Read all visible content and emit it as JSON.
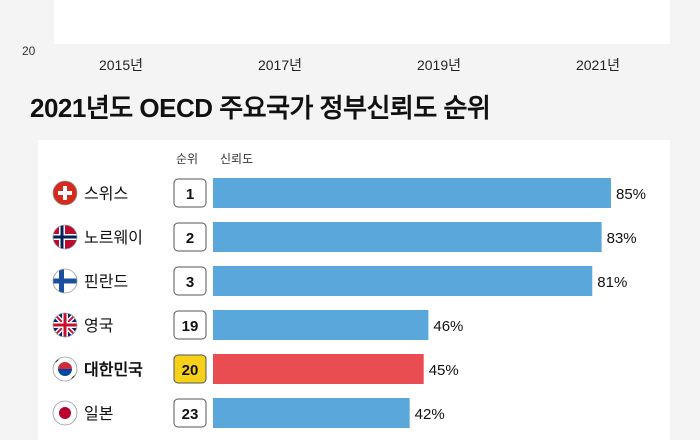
{
  "top_chart": {
    "y_tick": "20",
    "x_ticks": [
      "2015년",
      "2017년",
      "2019년",
      "2021년"
    ]
  },
  "title": "2021년도 OECD 주요국가 정부신뢰도 순위",
  "headers": {
    "rank": "순위",
    "trust": "신뢰도"
  },
  "colors": {
    "normal": "#5aa7dc",
    "highlight": "#e94d52",
    "rank_highlight": "#f7d117"
  },
  "chart_data": {
    "type": "bar",
    "orientation": "horizontal",
    "title": "2021년도 OECD 주요국가 정부신뢰도 순위",
    "categories": [
      "스위스",
      "노르웨이",
      "핀란드",
      "영국",
      "대한민국",
      "일본"
    ],
    "ranks": [
      "1",
      "2",
      "3",
      "19",
      "20",
      "23"
    ],
    "values": [
      85,
      83,
      81,
      46,
      45,
      42
    ],
    "value_labels": [
      "85%",
      "83%",
      "81%",
      "46%",
      "45%",
      "42%"
    ],
    "highlight": "대한민국",
    "unit": "%",
    "xlim": [
      0,
      85
    ]
  }
}
